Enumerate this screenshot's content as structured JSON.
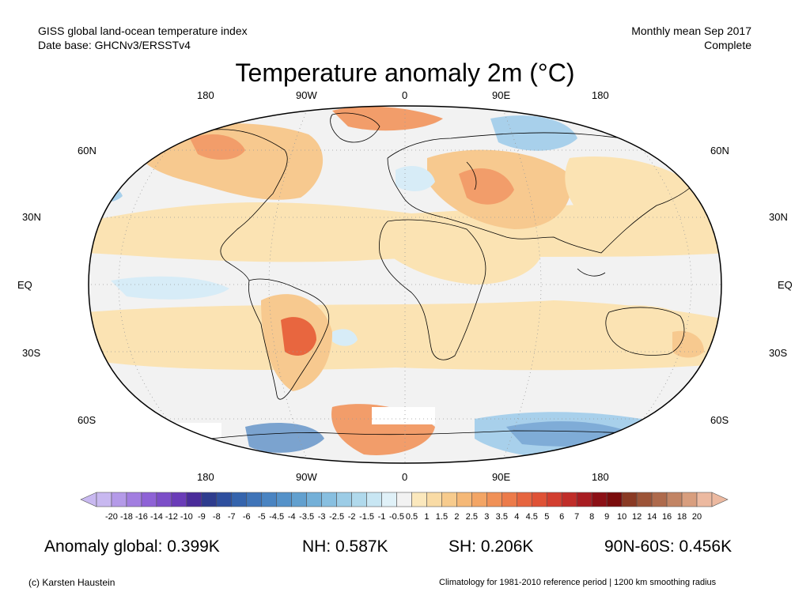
{
  "header": {
    "left_line1": "GISS global land-ocean temperature index",
    "left_line2": "Date base: GHCNv3/ERSSTv4",
    "right_line1": "Monthly mean Sep 2017",
    "right_line2": "Complete"
  },
  "title": "Temperature anomaly 2m (°C)",
  "map": {
    "lon_labels_top": [
      "180",
      "90W",
      "0",
      "90E",
      "180"
    ],
    "lon_labels_bottom": [
      "180",
      "90W",
      "0",
      "90E",
      "180"
    ],
    "lat_labels": [
      "60N",
      "30N",
      "EQ",
      "30S",
      "60S"
    ],
    "colors": {
      "ocean_neutral": "#f2f2f2",
      "warm_light": "#fbe3b3",
      "warm_mid": "#f7c98f",
      "warm_strong": "#f29d6a",
      "warm_hot": "#e8663f",
      "cool_light": "#d7ecf7",
      "cool_mid": "#a8d0eb",
      "cool_strong": "#5c8ec6",
      "coast": "#000000",
      "graticule": "#9a9a9a"
    }
  },
  "colorbar": {
    "ticks": [
      "-20",
      "-18",
      "-16",
      "-14",
      "-12",
      "-10",
      "-9",
      "-8",
      "-7",
      "-6",
      "-5",
      "-4.5",
      "-4",
      "-3.5",
      "-3",
      "-2.5",
      "-2",
      "-1.5",
      "-1",
      "-0.5",
      "0.5",
      "1",
      "1.5",
      "2",
      "2.5",
      "3",
      "3.5",
      "4",
      "4.5",
      "5",
      "6",
      "7",
      "8",
      "9",
      "10",
      "12",
      "14",
      "16",
      "18",
      "20"
    ],
    "colors": [
      "#c8b8f0",
      "#b49ae8",
      "#a27ee0",
      "#8e62d6",
      "#7c4ec8",
      "#6a3cb8",
      "#4a2c9a",
      "#2e3c8e",
      "#2e4f9e",
      "#3564ad",
      "#3f74b8",
      "#4a84c2",
      "#5592c9",
      "#62a0cf",
      "#74b0d8",
      "#88bfe0",
      "#9ccce6",
      "#b0d9ec",
      "#c8e6f3",
      "#e0f1f8",
      "#f2f2f2",
      "#fbe8bd",
      "#f9dba5",
      "#f7cb8d",
      "#f5b877",
      "#f3a565",
      "#f09157",
      "#ec7b4a",
      "#e6653f",
      "#df5236",
      "#d23e2f",
      "#c02d29",
      "#a81d22",
      "#8c1016",
      "#7a0c0c",
      "#8a3a24",
      "#9c5438",
      "#ae6a4c",
      "#c28464",
      "#d89e7e",
      "#ecb9a0"
    ]
  },
  "stats": {
    "global": "Anomaly global: 0.399K",
    "nh": "NH: 0.587K",
    "sh": "SH: 0.206K",
    "polar": "90N-60S: 0.456K"
  },
  "footer": {
    "credit": "(c) Karsten Haustein",
    "note": "Climatology for 1981-2010 reference period | 1200 km smoothing radius"
  }
}
